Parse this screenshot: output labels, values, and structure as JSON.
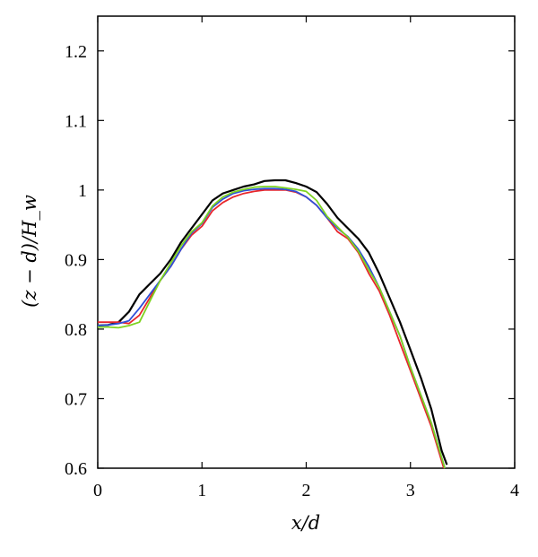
{
  "chart_data": {
    "type": "line",
    "xlabel": "x/d",
    "ylabel": "(z − d)/H_w",
    "xlim": [
      0,
      4
    ],
    "ylim": [
      0.6,
      1.25
    ],
    "xticks": [
      "0",
      "1",
      "2",
      "3",
      "4"
    ],
    "yticks": [
      "0.6",
      "0.7",
      "0.8",
      "0.9",
      "1",
      "1.1",
      "1.2"
    ],
    "grid": false,
    "legend": "none",
    "series": [
      {
        "color": "#000000",
        "points": [
          [
            0,
            0.805
          ],
          [
            0.1,
            0.806
          ],
          [
            0.2,
            0.81
          ],
          [
            0.3,
            0.825
          ],
          [
            0.4,
            0.85
          ],
          [
            0.5,
            0.865
          ],
          [
            0.6,
            0.88
          ],
          [
            0.7,
            0.9
          ],
          [
            0.8,
            0.925
          ],
          [
            0.9,
            0.945
          ],
          [
            1.0,
            0.965
          ],
          [
            1.1,
            0.985
          ],
          [
            1.2,
            0.995
          ],
          [
            1.3,
            1.0
          ],
          [
            1.4,
            1.005
          ],
          [
            1.5,
            1.008
          ],
          [
            1.6,
            1.013
          ],
          [
            1.7,
            1.014
          ],
          [
            1.8,
            1.014
          ],
          [
            1.9,
            1.01
          ],
          [
            2.0,
            1.005
          ],
          [
            2.1,
            0.997
          ],
          [
            2.2,
            0.98
          ],
          [
            2.3,
            0.96
          ],
          [
            2.4,
            0.945
          ],
          [
            2.5,
            0.93
          ],
          [
            2.6,
            0.91
          ],
          [
            2.7,
            0.88
          ],
          [
            2.8,
            0.845
          ],
          [
            2.9,
            0.81
          ],
          [
            3.0,
            0.77
          ],
          [
            3.1,
            0.73
          ],
          [
            3.2,
            0.685
          ],
          [
            3.3,
            0.625
          ],
          [
            3.35,
            0.605
          ]
        ]
      },
      {
        "color": "#e8262b",
        "points": [
          [
            0,
            0.81
          ],
          [
            0.1,
            0.81
          ],
          [
            0.2,
            0.81
          ],
          [
            0.3,
            0.808
          ],
          [
            0.4,
            0.82
          ],
          [
            0.5,
            0.845
          ],
          [
            0.6,
            0.87
          ],
          [
            0.7,
            0.89
          ],
          [
            0.8,
            0.915
          ],
          [
            0.9,
            0.935
          ],
          [
            1.0,
            0.948
          ],
          [
            1.1,
            0.97
          ],
          [
            1.2,
            0.982
          ],
          [
            1.3,
            0.99
          ],
          [
            1.4,
            0.995
          ],
          [
            1.5,
            0.998
          ],
          [
            1.6,
            1.0
          ],
          [
            1.7,
            1.0
          ],
          [
            1.8,
            1.0
          ],
          [
            1.9,
            0.997
          ],
          [
            2.0,
            0.99
          ],
          [
            2.1,
            0.978
          ],
          [
            2.2,
            0.96
          ],
          [
            2.3,
            0.94
          ],
          [
            2.4,
            0.93
          ],
          [
            2.5,
            0.91
          ],
          [
            2.6,
            0.88
          ],
          [
            2.7,
            0.855
          ],
          [
            2.8,
            0.82
          ],
          [
            2.9,
            0.78
          ],
          [
            3.0,
            0.74
          ],
          [
            3.1,
            0.7
          ],
          [
            3.2,
            0.66
          ],
          [
            3.3,
            0.61
          ],
          [
            3.32,
            0.6
          ]
        ]
      },
      {
        "color": "#2f4fd8",
        "points": [
          [
            0,
            0.805
          ],
          [
            0.1,
            0.806
          ],
          [
            0.2,
            0.808
          ],
          [
            0.3,
            0.812
          ],
          [
            0.4,
            0.83
          ],
          [
            0.5,
            0.85
          ],
          [
            0.6,
            0.87
          ],
          [
            0.7,
            0.89
          ],
          [
            0.8,
            0.915
          ],
          [
            0.9,
            0.938
          ],
          [
            1.0,
            0.952
          ],
          [
            1.1,
            0.975
          ],
          [
            1.2,
            0.987
          ],
          [
            1.3,
            0.995
          ],
          [
            1.4,
            0.999
          ],
          [
            1.5,
            1.001
          ],
          [
            1.6,
            1.002
          ],
          [
            1.7,
            1.002
          ],
          [
            1.8,
            1.001
          ],
          [
            1.9,
            0.998
          ],
          [
            2.0,
            0.99
          ],
          [
            2.1,
            0.978
          ],
          [
            2.2,
            0.96
          ],
          [
            2.3,
            0.945
          ],
          [
            2.4,
            0.933
          ],
          [
            2.5,
            0.915
          ],
          [
            2.6,
            0.89
          ],
          [
            2.7,
            0.86
          ],
          [
            2.8,
            0.825
          ],
          [
            2.9,
            0.79
          ],
          [
            3.0,
            0.745
          ],
          [
            3.1,
            0.705
          ],
          [
            3.2,
            0.665
          ],
          [
            3.3,
            0.615
          ],
          [
            3.33,
            0.6
          ]
        ]
      },
      {
        "color": "#7ed321",
        "points": [
          [
            0,
            0.803
          ],
          [
            0.1,
            0.803
          ],
          [
            0.2,
            0.802
          ],
          [
            0.3,
            0.805
          ],
          [
            0.4,
            0.81
          ],
          [
            0.5,
            0.84
          ],
          [
            0.6,
            0.87
          ],
          [
            0.7,
            0.895
          ],
          [
            0.8,
            0.92
          ],
          [
            0.9,
            0.94
          ],
          [
            1.0,
            0.953
          ],
          [
            1.1,
            0.977
          ],
          [
            1.2,
            0.99
          ],
          [
            1.3,
            0.997
          ],
          [
            1.4,
            1.001
          ],
          [
            1.5,
            1.004
          ],
          [
            1.6,
            1.005
          ],
          [
            1.7,
            1.005
          ],
          [
            1.8,
            1.003
          ],
          [
            1.9,
            1.001
          ],
          [
            2.0,
            0.998
          ],
          [
            2.1,
            0.985
          ],
          [
            2.2,
            0.962
          ],
          [
            2.3,
            0.947
          ],
          [
            2.4,
            0.932
          ],
          [
            2.5,
            0.912
          ],
          [
            2.6,
            0.885
          ],
          [
            2.7,
            0.86
          ],
          [
            2.8,
            0.825
          ],
          [
            2.9,
            0.79
          ],
          [
            3.0,
            0.745
          ],
          [
            3.1,
            0.705
          ],
          [
            3.2,
            0.665
          ],
          [
            3.3,
            0.615
          ],
          [
            3.33,
            0.6
          ]
        ]
      }
    ]
  }
}
